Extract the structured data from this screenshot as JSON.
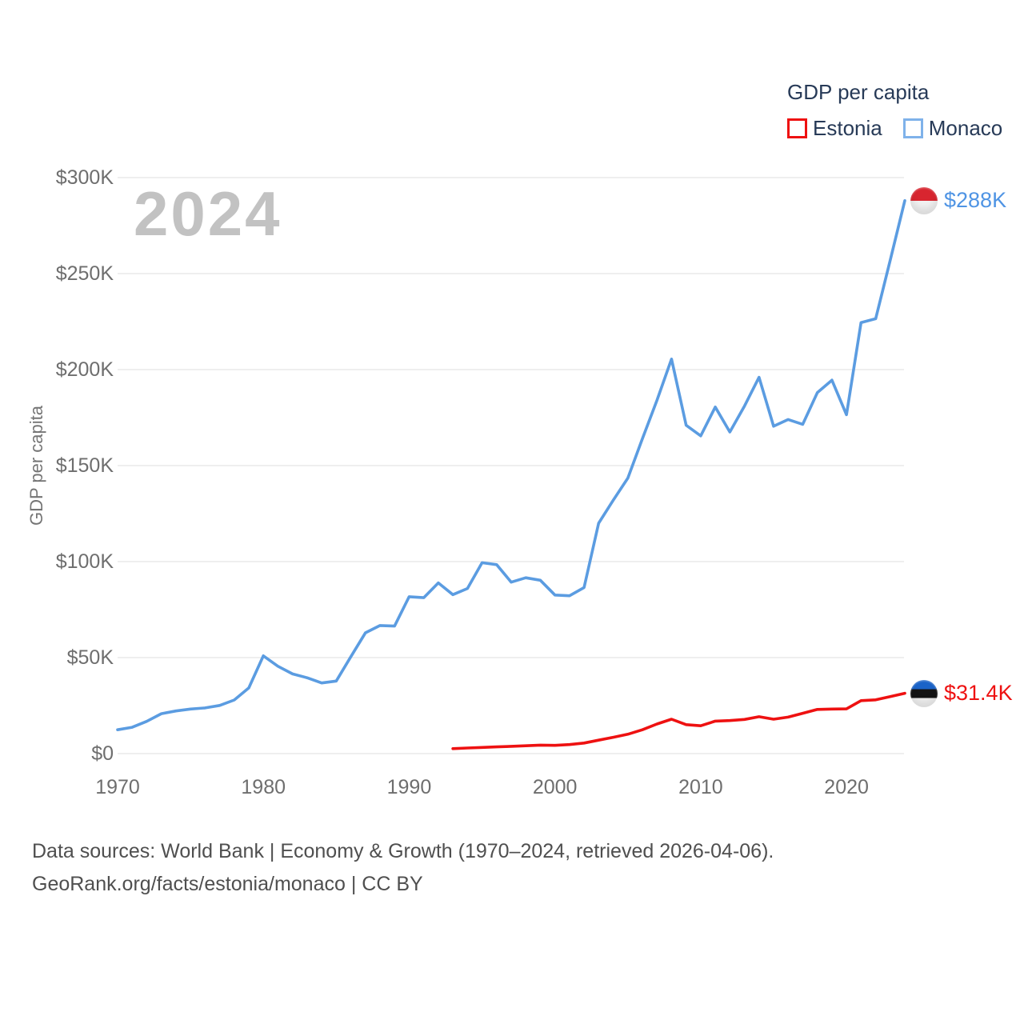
{
  "watermark": "2024",
  "legend": {
    "title": "GDP per capita",
    "items": [
      {
        "label": "Estonia",
        "color": "#ee1111"
      },
      {
        "label": "Monaco",
        "color": "#7fb2ea"
      }
    ]
  },
  "y_axis_title": "GDP per capita",
  "end_labels": {
    "monaco": {
      "value": "$288K",
      "flag": "monaco-flag"
    },
    "estonia": {
      "value": "$31.4K",
      "flag": "estonia-flag"
    }
  },
  "footer": {
    "line1": "Data sources: World Bank | Economy & Growth (1970–2024, retrieved 2026-04-06).",
    "line2": "GeoRank.org/facts/estonia/monaco | CC BY"
  },
  "chart_data": {
    "type": "line",
    "title": "GDP per capita",
    "xlabel": "",
    "ylabel": "GDP per capita",
    "unit": "USD",
    "x_range": [
      1970,
      2024
    ],
    "ylim": [
      0,
      300000
    ],
    "grid": true,
    "legend_position": "top-right",
    "y_ticks": [
      {
        "value": 0,
        "label": "$0"
      },
      {
        "value": 50000,
        "label": "$50K"
      },
      {
        "value": 100000,
        "label": "$100K"
      },
      {
        "value": 150000,
        "label": "$150K"
      },
      {
        "value": 200000,
        "label": "$200K"
      },
      {
        "value": 250000,
        "label": "$250K"
      },
      {
        "value": 300000,
        "label": "$300K"
      }
    ],
    "x_ticks": [
      1970,
      1980,
      1990,
      2000,
      2010,
      2020
    ],
    "series": [
      {
        "name": "Monaco",
        "color": "#5b9ce1",
        "start_year": 1970,
        "values": [
          12400,
          13700,
          16800,
          20800,
          22200,
          23200,
          23800,
          25100,
          27900,
          34200,
          50900,
          45500,
          41500,
          39500,
          36800,
          37800,
          50500,
          62900,
          66700,
          66400,
          81700,
          81200,
          88900,
          82800,
          86000,
          99400,
          98400,
          89300,
          91600,
          90300,
          82600,
          82200,
          86500,
          120000,
          132000,
          143500,
          164000,
          184000,
          205500,
          171000,
          165500,
          180500,
          167500,
          181000,
          196000,
          170500,
          174000,
          171500,
          188000,
          194500,
          176500,
          224500,
          226500,
          257000,
          288000
        ]
      },
      {
        "name": "Estonia",
        "color": "#ee1111",
        "start_year": 1993,
        "values": [
          2600,
          2900,
          3200,
          3500,
          3800,
          4100,
          4400,
          4300,
          4700,
          5500,
          7000,
          8500,
          10100,
          12400,
          15400,
          17900,
          15100,
          14500,
          16900,
          17200,
          17800,
          19200,
          17900,
          19000,
          21000,
          23000,
          23200,
          23300,
          27600,
          28000,
          29700,
          31400
        ]
      }
    ],
    "annotations": [
      {
        "series": "Monaco",
        "year": 2024,
        "label": "$288K"
      },
      {
        "series": "Estonia",
        "year": 2024,
        "label": "$31.4K"
      }
    ]
  }
}
